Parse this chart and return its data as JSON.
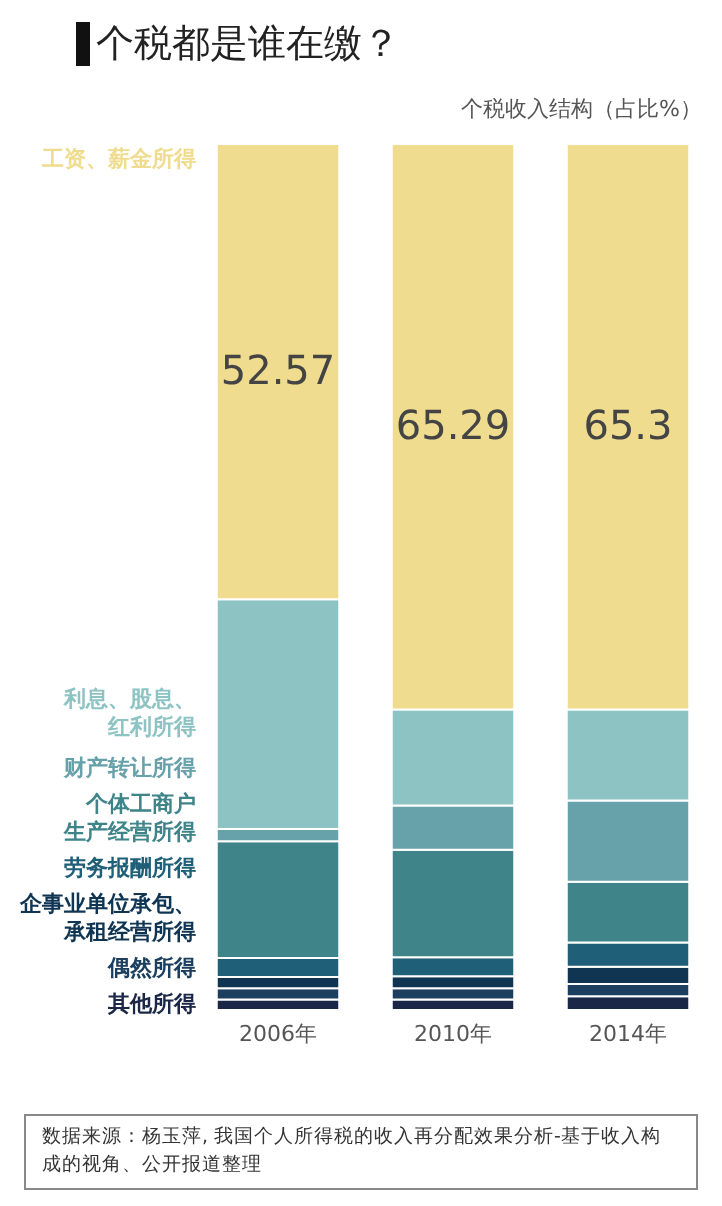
{
  "chart_data": {
    "type": "bar",
    "title": "个税都是谁在缴？",
    "subtitle": "个税收入结构（占比%）",
    "categories": [
      "2006年",
      "2010年",
      "2014年"
    ],
    "stacked": true,
    "ylim": [
      0,
      100
    ],
    "legend": "left",
    "series": [
      {
        "name": "其他所得",
        "color": "#1a2747",
        "values": [
          1.2,
          1.2,
          1.6
        ]
      },
      {
        "name": "偶然所得",
        "color": "#1c3f60",
        "values": [
          1.3,
          1.3,
          1.4
        ]
      },
      {
        "name": "企事业单位承包、承租经营所得",
        "color": "#0f3553",
        "values": [
          1.3,
          1.4,
          2.0
        ]
      },
      {
        "name": "劳务报酬所得",
        "color": "#1f5f78",
        "values": [
          2.2,
          2.2,
          2.8
        ]
      },
      {
        "name": "个体工商户生产经营所得",
        "color": "#3f8488",
        "values": [
          13.5,
          12.4,
          7.0
        ]
      },
      {
        "name": "财产转让所得",
        "color": "#67a1a9",
        "values": [
          1.4,
          5.1,
          9.4
        ]
      },
      {
        "name": "利息、股息、红利所得",
        "color": "#8ec3c4",
        "values": [
          26.53,
          11.11,
          10.5
        ]
      },
      {
        "name": "工资、薪金所得",
        "color": "#f0dc8e",
        "values": [
          52.57,
          65.29,
          65.3
        ],
        "value_labels": [
          "52.57",
          "65.29",
          "65.3"
        ]
      }
    ],
    "annotations": [
      "数据来源：杨玉萍, 我国个人所得税的收入再分配效果分析-基于收入构成的视角、公开报道整理"
    ]
  }
}
